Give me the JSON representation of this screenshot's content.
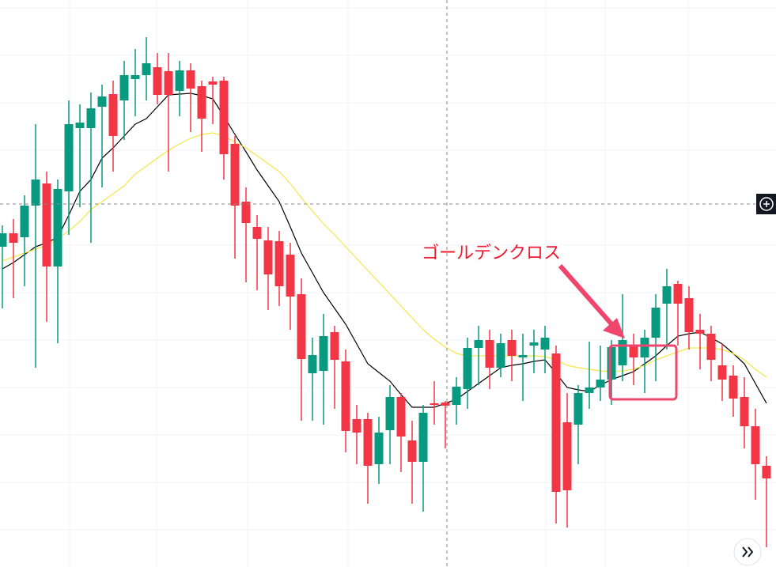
{
  "chart_data": {
    "type": "candlestick",
    "annotation": "ゴールデンクロス",
    "categories": [
      null,
      null,
      null,
      null,
      null,
      null,
      null,
      null,
      null,
      null,
      null,
      null,
      null,
      null,
      null,
      null,
      null,
      null,
      null,
      null,
      null,
      null,
      null,
      null,
      null,
      null,
      null,
      null,
      null,
      null,
      null,
      null,
      null,
      null,
      null,
      null,
      null,
      null,
      null,
      null,
      null,
      null,
      null,
      null,
      null,
      null,
      null,
      null,
      null,
      null,
      null,
      null,
      null,
      null,
      null,
      null,
      null,
      null,
      null,
      null,
      null,
      null,
      null,
      null,
      null,
      null,
      null,
      null,
      null,
      null
    ],
    "open": [
      405,
      422,
      417,
      457,
      485,
      380,
      475,
      555,
      555,
      582,
      598,
      590,
      617,
      622,
      632,
      627,
      602,
      628,
      608,
      614,
      615,
      535,
      462,
      430,
      413,
      412,
      395,
      345,
      245,
      248,
      297,
      260,
      187,
      187,
      130,
      173,
      215,
      160,
      133,
      207,
      208,
      205,
      225,
      277,
      287,
      252,
      287,
      265,
      280,
      275,
      270,
      183,
      180,
      220,
      227,
      237,
      255,
      280,
      265,
      290,
      333,
      358,
      340,
      300,
      295,
      255,
      242,
      215,
      178,
      128
    ],
    "close": [
      422,
      410,
      457,
      490,
      380,
      478,
      560,
      562,
      580,
      595,
      545,
      622,
      622,
      637,
      597,
      597,
      628,
      605,
      567,
      610,
      522,
      457,
      435,
      415,
      370,
      355,
      342,
      263,
      268,
      292,
      262,
      172,
      170,
      128,
      170,
      215,
      165,
      133,
      195,
      205,
      204,
      228,
      277,
      287,
      252,
      283,
      267,
      268,
      284,
      290,
      95,
      97,
      220,
      227,
      237,
      278,
      287,
      265,
      290,
      328,
      355,
      333,
      297,
      295,
      262,
      237,
      213,
      178,
      130,
      112
    ],
    "high": [
      432,
      440,
      470,
      560,
      500,
      490,
      590,
      585,
      600,
      610,
      615,
      640,
      655,
      670,
      650,
      650,
      640,
      637,
      615,
      620,
      620,
      545,
      480,
      445,
      430,
      425,
      410,
      365,
      290,
      320,
      305,
      275,
      205,
      195,
      190,
      230,
      220,
      185,
      205,
      235,
      210,
      240,
      290,
      305,
      300,
      295,
      300,
      295,
      300,
      305,
      280,
      220,
      230,
      285,
      280,
      287,
      345,
      295,
      300,
      345,
      377,
      362,
      355,
      320,
      305,
      282,
      255,
      240,
      200,
      140
    ],
    "low": [
      327,
      340,
      355,
      252,
      310,
      283,
      420,
      455,
      410,
      480,
      500,
      540,
      570,
      590,
      585,
      500,
      570,
      550,
      525,
      560,
      490,
      390,
      360,
      350,
      325,
      330,
      300,
      185,
      185,
      180,
      200,
      145,
      130,
      80,
      105,
      130,
      120,
      80,
      70,
      180,
      150,
      180,
      200,
      230,
      225,
      240,
      235,
      210,
      245,
      245,
      55,
      50,
      130,
      200,
      210,
      205,
      235,
      230,
      220,
      235,
      275,
      280,
      275,
      250,
      235,
      210,
      190,
      150,
      85,
      25
    ],
    "up_color": "#089981",
    "down_color": "#f23645",
    "series": [
      {
        "color": "#000000",
        "values": [
          377,
          385,
          395,
          405,
          410,
          417,
          445,
          475,
          490,
          517,
          530,
          545,
          560,
          567,
          582,
          597,
          598,
          599,
          596,
          592,
          570,
          547,
          525,
          502,
          482,
          462,
          430,
          397,
          372,
          347,
          327,
          307,
          282,
          257,
          246,
          235,
          218,
          202,
          202,
          202,
          207,
          212,
          222,
          232,
          242,
          252,
          255,
          257,
          260,
          262,
          245,
          227,
          224,
          222,
          230,
          237,
          242,
          247,
          257,
          267,
          280,
          292,
          295,
          297,
          290,
          282,
          270,
          257,
          232,
          207
        ]
      },
      {
        "color": "#f5e64a",
        "values": [
          387,
          392,
          397,
          402,
          407,
          415,
          425,
          437,
          452,
          462,
          472,
          482,
          497,
          507,
          517,
          527,
          535,
          542,
          547,
          549,
          545,
          537,
          530,
          520,
          510,
          500,
          485,
          467,
          450,
          434,
          420,
          405,
          390,
          375,
          360,
          345,
          330,
          315,
          300,
          288,
          278,
          270,
          267,
          267,
          267,
          267,
          267,
          267,
          267,
          266,
          262,
          255,
          252,
          250,
          248,
          247,
          248,
          250,
          255,
          262,
          267,
          272,
          277,
          277,
          277,
          275,
          270,
          262,
          250,
          240
        ]
      }
    ],
    "ylim": [
      0,
      717
    ]
  }
}
